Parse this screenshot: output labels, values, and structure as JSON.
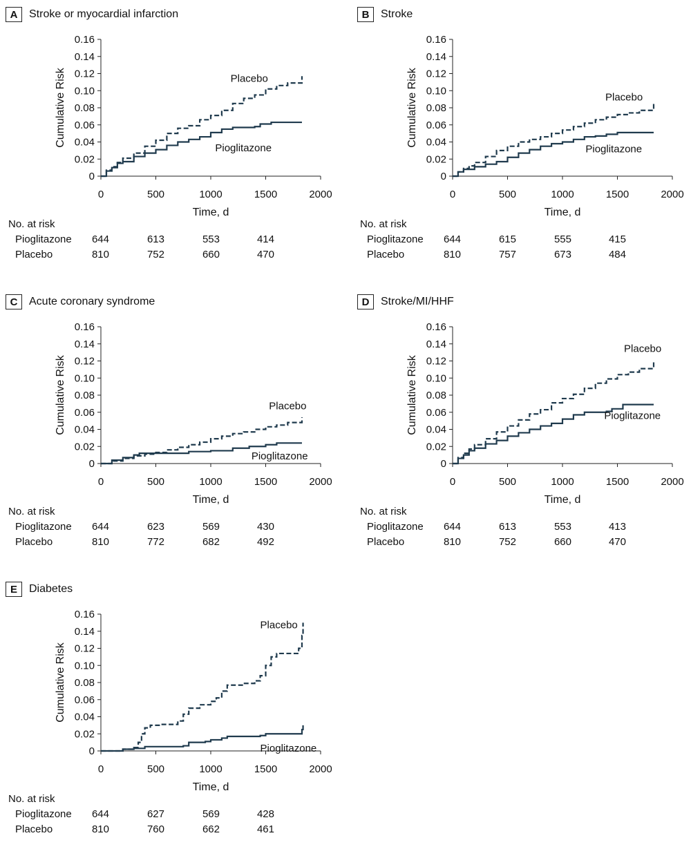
{
  "colors": {
    "line": "#1f3a4d",
    "axis": "#222222"
  },
  "chart_data": [
    {
      "id": "A",
      "title": "Stroke or myocardial infarction",
      "type": "line",
      "xlabel": "Time, d",
      "ylabel": "Cumulative Risk",
      "xlim": [
        0,
        2000
      ],
      "ylim": [
        0,
        0.16
      ],
      "xticks": [
        "0",
        "500",
        "1000",
        "1500",
        "2000"
      ],
      "yticks": [
        "0",
        "0.02",
        "0.04",
        "0.06",
        "0.08",
        "0.10",
        "0.12",
        "0.14",
        "0.16"
      ],
      "series": [
        {
          "name": "Placebo",
          "dash": true,
          "points": [
            [
              0,
              0
            ],
            [
              50,
              0.007
            ],
            [
              100,
              0.011
            ],
            [
              150,
              0.016
            ],
            [
              200,
              0.021
            ],
            [
              300,
              0.027
            ],
            [
              400,
              0.035
            ],
            [
              500,
              0.042
            ],
            [
              600,
              0.05
            ],
            [
              700,
              0.056
            ],
            [
              800,
              0.059
            ],
            [
              900,
              0.066
            ],
            [
              1000,
              0.071
            ],
            [
              1100,
              0.077
            ],
            [
              1200,
              0.085
            ],
            [
              1300,
              0.091
            ],
            [
              1400,
              0.095
            ],
            [
              1500,
              0.102
            ],
            [
              1600,
              0.106
            ],
            [
              1700,
              0.109
            ],
            [
              1830,
              0.117
            ]
          ]
        },
        {
          "name": "Pioglitazone",
          "dash": false,
          "points": [
            [
              0,
              0
            ],
            [
              50,
              0.006
            ],
            [
              100,
              0.01
            ],
            [
              150,
              0.015
            ],
            [
              200,
              0.017
            ],
            [
              300,
              0.023
            ],
            [
              400,
              0.027
            ],
            [
              500,
              0.031
            ],
            [
              600,
              0.036
            ],
            [
              700,
              0.04
            ],
            [
              800,
              0.043
            ],
            [
              900,
              0.046
            ],
            [
              1000,
              0.051
            ],
            [
              1100,
              0.055
            ],
            [
              1200,
              0.057
            ],
            [
              1400,
              0.058
            ],
            [
              1450,
              0.061
            ],
            [
              1550,
              0.063
            ],
            [
              1830,
              0.063
            ]
          ]
        }
      ],
      "annotations": [
        {
          "text": "Placebo",
          "x": 1180,
          "y": 0.1105
        },
        {
          "text": "Pioglitazone",
          "x": 1040,
          "y": 0.029
        }
      ],
      "risk_title": "No. at risk",
      "risk_rows": [
        {
          "label": "Pioglitazone",
          "values": [
            "644",
            "613",
            "553",
            "414"
          ]
        },
        {
          "label": "Placebo",
          "values": [
            "810",
            "752",
            "660",
            "470"
          ]
        }
      ]
    },
    {
      "id": "B",
      "title": "Stroke",
      "type": "line",
      "xlabel": "Time, d",
      "ylabel": "Cumulative Risk",
      "xlim": [
        0,
        2000
      ],
      "ylim": [
        0,
        0.16
      ],
      "xticks": [
        "0",
        "500",
        "1000",
        "1500",
        "2000"
      ],
      "yticks": [
        "0",
        "0.02",
        "0.04",
        "0.06",
        "0.08",
        "0.10",
        "0.12",
        "0.14",
        "0.16"
      ],
      "series": [
        {
          "name": "Placebo",
          "dash": true,
          "points": [
            [
              0,
              0
            ],
            [
              50,
              0.005
            ],
            [
              100,
              0.009
            ],
            [
              150,
              0.012
            ],
            [
              200,
              0.016
            ],
            [
              300,
              0.023
            ],
            [
              400,
              0.03
            ],
            [
              500,
              0.035
            ],
            [
              600,
              0.04
            ],
            [
              700,
              0.043
            ],
            [
              800,
              0.046
            ],
            [
              900,
              0.05
            ],
            [
              1000,
              0.054
            ],
            [
              1100,
              0.058
            ],
            [
              1200,
              0.062
            ],
            [
              1300,
              0.066
            ],
            [
              1400,
              0.069
            ],
            [
              1500,
              0.072
            ],
            [
              1600,
              0.074
            ],
            [
              1700,
              0.077
            ],
            [
              1830,
              0.085
            ]
          ]
        },
        {
          "name": "Pioglitazone",
          "dash": false,
          "points": [
            [
              0,
              0
            ],
            [
              50,
              0.005
            ],
            [
              100,
              0.008
            ],
            [
              200,
              0.011
            ],
            [
              300,
              0.014
            ],
            [
              400,
              0.017
            ],
            [
              500,
              0.022
            ],
            [
              600,
              0.027
            ],
            [
              700,
              0.031
            ],
            [
              800,
              0.035
            ],
            [
              900,
              0.038
            ],
            [
              1000,
              0.04
            ],
            [
              1100,
              0.043
            ],
            [
              1200,
              0.046
            ],
            [
              1300,
              0.047
            ],
            [
              1400,
              0.049
            ],
            [
              1500,
              0.051
            ],
            [
              1830,
              0.051
            ]
          ]
        }
      ],
      "annotations": [
        {
          "text": "Placebo",
          "x": 1390,
          "y": 0.0885
        },
        {
          "text": "Pioglitazone",
          "x": 1210,
          "y": 0.028
        }
      ],
      "risk_title": "No. at risk",
      "risk_rows": [
        {
          "label": "Pioglitazone",
          "values": [
            "644",
            "615",
            "555",
            "415"
          ]
        },
        {
          "label": "Placebo",
          "values": [
            "810",
            "757",
            "673",
            "484"
          ]
        }
      ]
    },
    {
      "id": "C",
      "title": "Acute coronary syndrome",
      "type": "line",
      "xlabel": "Time, d",
      "ylabel": "Cumulative Risk",
      "xlim": [
        0,
        2000
      ],
      "ylim": [
        0,
        0.16
      ],
      "xticks": [
        "0",
        "500",
        "1000",
        "1500",
        "2000"
      ],
      "yticks": [
        "0",
        "0.02",
        "0.04",
        "0.06",
        "0.08",
        "0.10",
        "0.12",
        "0.14",
        "0.16"
      ],
      "series": [
        {
          "name": "Placebo",
          "dash": true,
          "points": [
            [
              0,
              0
            ],
            [
              100,
              0.003
            ],
            [
              200,
              0.006
            ],
            [
              300,
              0.009
            ],
            [
              400,
              0.011
            ],
            [
              500,
              0.013
            ],
            [
              600,
              0.016
            ],
            [
              700,
              0.019
            ],
            [
              800,
              0.022
            ],
            [
              900,
              0.025
            ],
            [
              1000,
              0.029
            ],
            [
              1100,
              0.032
            ],
            [
              1200,
              0.035
            ],
            [
              1300,
              0.037
            ],
            [
              1400,
              0.04
            ],
            [
              1500,
              0.043
            ],
            [
              1600,
              0.045
            ],
            [
              1700,
              0.048
            ],
            [
              1830,
              0.054
            ]
          ]
        },
        {
          "name": "Pioglitazone",
          "dash": false,
          "points": [
            [
              0,
              0
            ],
            [
              100,
              0.004
            ],
            [
              200,
              0.007
            ],
            [
              300,
              0.01
            ],
            [
              350,
              0.012
            ],
            [
              750,
              0.012
            ],
            [
              800,
              0.014
            ],
            [
              1000,
              0.015
            ],
            [
              1200,
              0.018
            ],
            [
              1350,
              0.02
            ],
            [
              1500,
              0.022
            ],
            [
              1600,
              0.024
            ],
            [
              1830,
              0.024
            ]
          ]
        }
      ],
      "annotations": [
        {
          "text": "Placebo",
          "x": 1530,
          "y": 0.0635
        },
        {
          "text": "Pioglitazone",
          "x": 1370,
          "y": 0.005
        }
      ],
      "risk_title": "No. at risk",
      "risk_rows": [
        {
          "label": "Pioglitazone",
          "values": [
            "644",
            "623",
            "569",
            "430"
          ]
        },
        {
          "label": "Placebo",
          "values": [
            "810",
            "772",
            "682",
            "492"
          ]
        }
      ]
    },
    {
      "id": "D",
      "title": "Stroke/MI/HHF",
      "type": "line",
      "xlabel": "Time, d",
      "ylabel": "Cumulative Risk",
      "xlim": [
        0,
        2000
      ],
      "ylim": [
        0,
        0.16
      ],
      "xticks": [
        "0",
        "500",
        "1000",
        "1500",
        "2000"
      ],
      "yticks": [
        "0",
        "0.02",
        "0.04",
        "0.06",
        "0.08",
        "0.10",
        "0.12",
        "0.14",
        "0.16"
      ],
      "series": [
        {
          "name": "Placebo",
          "dash": true,
          "points": [
            [
              0,
              0
            ],
            [
              50,
              0.007
            ],
            [
              100,
              0.012
            ],
            [
              150,
              0.017
            ],
            [
              200,
              0.022
            ],
            [
              300,
              0.029
            ],
            [
              400,
              0.037
            ],
            [
              500,
              0.044
            ],
            [
              600,
              0.051
            ],
            [
              700,
              0.058
            ],
            [
              800,
              0.063
            ],
            [
              900,
              0.071
            ],
            [
              1000,
              0.076
            ],
            [
              1100,
              0.081
            ],
            [
              1200,
              0.088
            ],
            [
              1300,
              0.094
            ],
            [
              1400,
              0.099
            ],
            [
              1500,
              0.104
            ],
            [
              1600,
              0.107
            ],
            [
              1700,
              0.111
            ],
            [
              1830,
              0.119
            ]
          ]
        },
        {
          "name": "Pioglitazone",
          "dash": false,
          "points": [
            [
              0,
              0
            ],
            [
              50,
              0.006
            ],
            [
              100,
              0.01
            ],
            [
              150,
              0.015
            ],
            [
              200,
              0.018
            ],
            [
              300,
              0.023
            ],
            [
              400,
              0.027
            ],
            [
              500,
              0.032
            ],
            [
              600,
              0.036
            ],
            [
              700,
              0.04
            ],
            [
              800,
              0.044
            ],
            [
              900,
              0.047
            ],
            [
              1000,
              0.052
            ],
            [
              1100,
              0.057
            ],
            [
              1200,
              0.06
            ],
            [
              1400,
              0.061
            ],
            [
              1450,
              0.064
            ],
            [
              1550,
              0.069
            ],
            [
              1830,
              0.069
            ]
          ]
        }
      ],
      "annotations": [
        {
          "text": "Placebo",
          "x": 1560,
          "y": 0.1305
        },
        {
          "text": "Pioglitazone",
          "x": 1380,
          "y": 0.052
        }
      ],
      "risk_title": "No. at risk",
      "risk_rows": [
        {
          "label": "Pioglitazone",
          "values": [
            "644",
            "613",
            "553",
            "413"
          ]
        },
        {
          "label": "Placebo",
          "values": [
            "810",
            "752",
            "660",
            "470"
          ]
        }
      ]
    },
    {
      "id": "E",
      "title": "Diabetes",
      "type": "line",
      "xlabel": "Time, d",
      "ylabel": "Cumulative Risk",
      "xlim": [
        0,
        2000
      ],
      "ylim": [
        0,
        0.16
      ],
      "xticks": [
        "0",
        "500",
        "1000",
        "1500",
        "2000"
      ],
      "yticks": [
        "0",
        "0.02",
        "0.04",
        "0.06",
        "0.08",
        "0.10",
        "0.12",
        "0.14",
        "0.16"
      ],
      "series": [
        {
          "name": "Placebo",
          "dash": true,
          "points": [
            [
              0,
              0
            ],
            [
              200,
              0.002
            ],
            [
              300,
              0.004
            ],
            [
              340,
              0.01
            ],
            [
              370,
              0.02
            ],
            [
              400,
              0.027
            ],
            [
              450,
              0.03
            ],
            [
              550,
              0.031
            ],
            [
              700,
              0.035
            ],
            [
              750,
              0.043
            ],
            [
              800,
              0.05
            ],
            [
              900,
              0.054
            ],
            [
              1000,
              0.058
            ],
            [
              1050,
              0.062
            ],
            [
              1100,
              0.07
            ],
            [
              1150,
              0.077
            ],
            [
              1300,
              0.079
            ],
            [
              1400,
              0.082
            ],
            [
              1450,
              0.088
            ],
            [
              1500,
              0.1
            ],
            [
              1550,
              0.11
            ],
            [
              1600,
              0.114
            ],
            [
              1750,
              0.114
            ],
            [
              1800,
              0.12
            ],
            [
              1830,
              0.135
            ],
            [
              1840,
              0.15
            ]
          ]
        },
        {
          "name": "Pioglitazone",
          "dash": false,
          "points": [
            [
              0,
              0
            ],
            [
              200,
              0.002
            ],
            [
              300,
              0.003
            ],
            [
              400,
              0.005
            ],
            [
              750,
              0.006
            ],
            [
              800,
              0.01
            ],
            [
              950,
              0.011
            ],
            [
              1000,
              0.013
            ],
            [
              1100,
              0.015
            ],
            [
              1150,
              0.017
            ],
            [
              1450,
              0.018
            ],
            [
              1500,
              0.02
            ],
            [
              1800,
              0.02
            ],
            [
              1830,
              0.025
            ],
            [
              1840,
              0.03
            ]
          ]
        }
      ],
      "annotations": [
        {
          "text": "Placebo",
          "x": 1450,
          "y": 0.1435
        },
        {
          "text": "Pioglitazone",
          "x": 1450,
          "y": -0.001
        }
      ],
      "risk_title": "No. at risk",
      "risk_rows": [
        {
          "label": "Pioglitazone",
          "values": [
            "644",
            "627",
            "569",
            "428"
          ]
        },
        {
          "label": "Placebo",
          "values": [
            "810",
            "760",
            "662",
            "461"
          ]
        }
      ]
    }
  ]
}
